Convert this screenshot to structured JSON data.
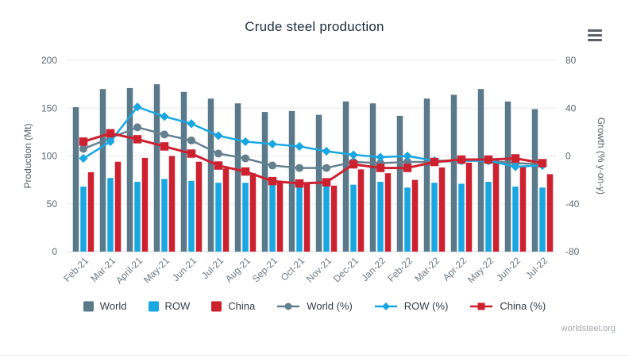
{
  "header": {
    "title": "Crude steel production"
  },
  "footer": {
    "source": "worldsteel.org"
  },
  "chart_data": {
    "type": "bar+line",
    "title": "Crude steel production",
    "categories": [
      "Feb-21",
      "Mar-21",
      "April-21",
      "May-21",
      "Jun-21",
      "Jul-21",
      "Aug-21",
      "Sep-21",
      "Oct-21",
      "Nov-21",
      "Dec-21",
      "Jan-22",
      "Feb-22",
      "Mar-22",
      "Apr-22",
      "May-22",
      "Jun-22",
      "Jul-22"
    ],
    "bar_series": [
      {
        "name": "World",
        "color": "#5a7a8c",
        "axis": "left",
        "values": [
          151,
          170,
          171,
          175,
          167,
          160,
          155,
          146,
          147,
          143,
          157,
          155,
          142,
          160,
          164,
          170,
          157,
          149
        ]
      },
      {
        "name": "ROW",
        "color": "#1aa7e1",
        "axis": "left",
        "values": [
          68,
          77,
          73,
          76,
          74,
          72,
          72,
          73,
          70,
          70,
          70,
          73,
          67,
          72,
          71,
          73,
          68,
          67
        ]
      },
      {
        "name": "China",
        "color": "#cd2130",
        "axis": "left",
        "values": [
          83,
          94,
          98,
          100,
          94,
          87,
          82,
          73,
          71,
          69,
          86,
          82,
          75,
          88,
          93,
          97,
          90,
          81
        ]
      }
    ],
    "line_series": [
      {
        "name": "World (%)",
        "color": "#64808f",
        "marker": "circle",
        "axis": "right",
        "values": [
          6,
          15,
          24,
          18,
          13,
          2,
          -2,
          -8,
          -10,
          -10,
          -5,
          -6,
          -5,
          -5,
          -4,
          -4,
          -6,
          -7
        ]
      },
      {
        "name": "ROW (%)",
        "color": "#1aa7e1",
        "marker": "diamond",
        "axis": "right",
        "values": [
          -2,
          12,
          41,
          33,
          27,
          17,
          12,
          10,
          8,
          4,
          1,
          -1,
          0,
          -4,
          -4,
          -4,
          -9,
          -8
        ]
      },
      {
        "name": "China (%)",
        "color": "#cd2130",
        "marker": "square",
        "axis": "right",
        "values": [
          12,
          19,
          14,
          8,
          2,
          -8,
          -13,
          -21,
          -23,
          -22,
          -7,
          -10,
          -10,
          -5,
          -3,
          -3,
          -2,
          -6
        ]
      }
    ],
    "left_axis": {
      "label": "Production (Mt)",
      "min": 0,
      "max": 200,
      "ticks": [
        0,
        50,
        100,
        150,
        200
      ]
    },
    "right_axis": {
      "label": "Growth (% y-on-y)",
      "min": -80,
      "max": 80,
      "ticks": [
        -80,
        -40,
        0,
        40,
        80
      ]
    },
    "legend": [
      "World",
      "ROW",
      "China",
      "World (%)",
      "ROW (%)",
      "China (%)"
    ],
    "legend_position": "bottom",
    "grid": true
  }
}
